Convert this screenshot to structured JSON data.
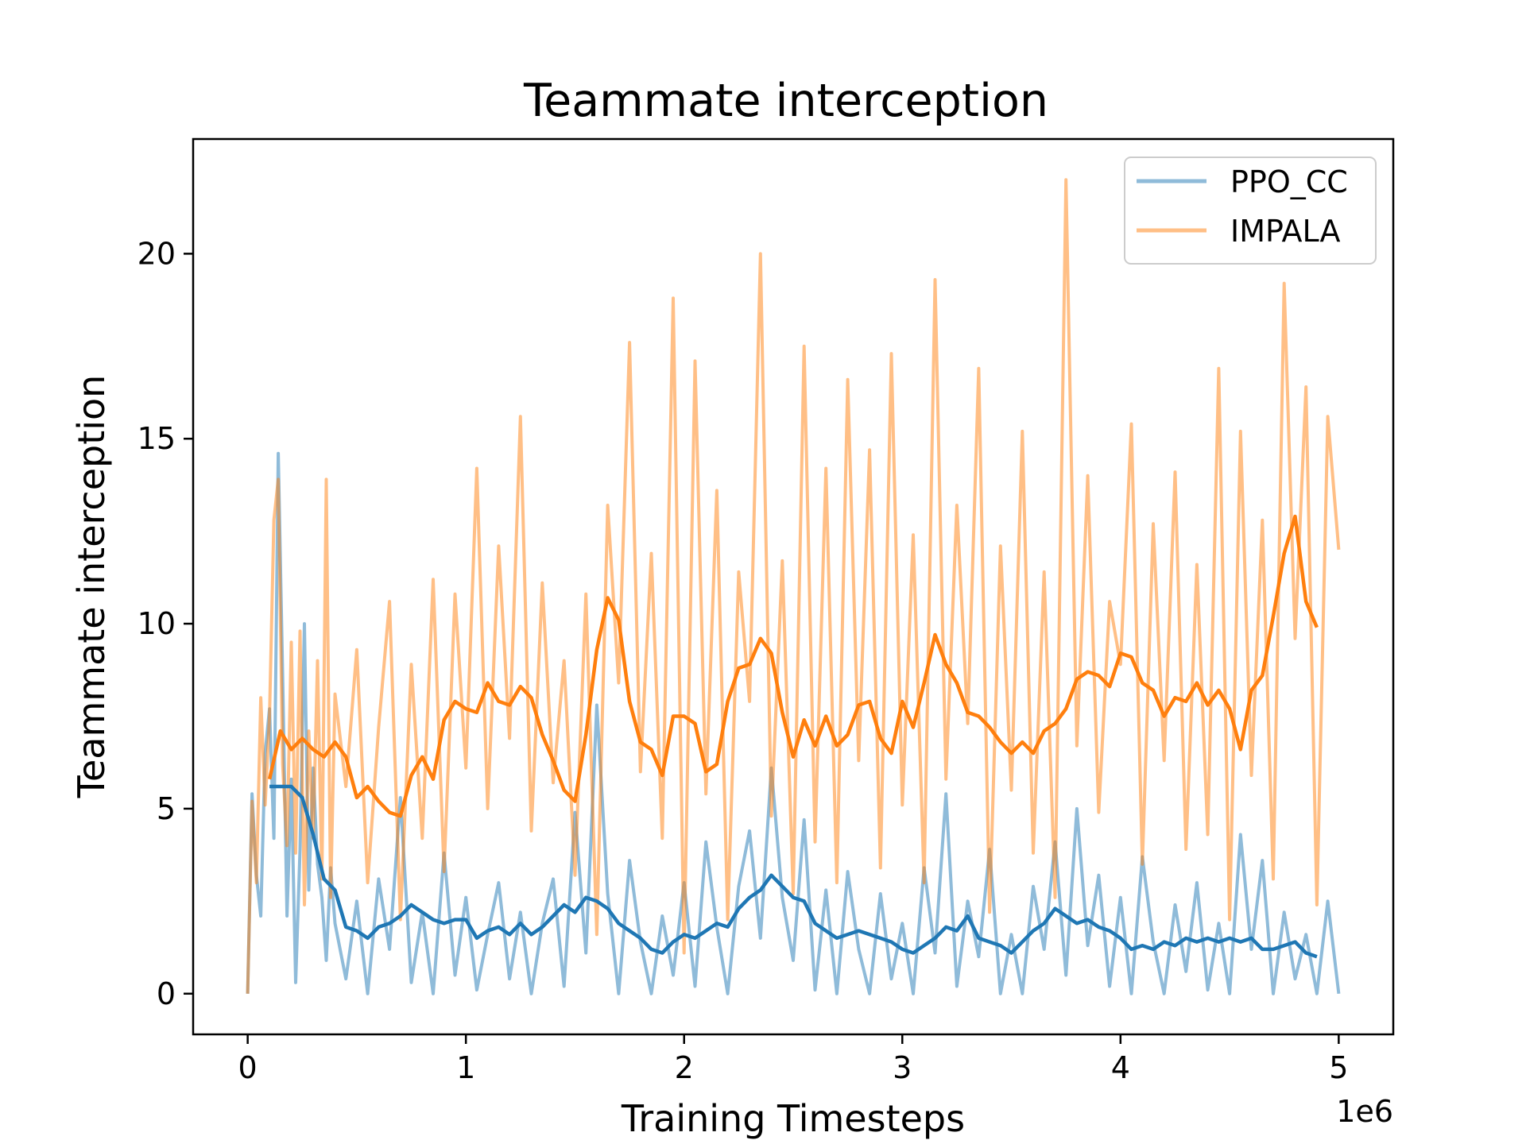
{
  "chart_data": {
    "type": "line",
    "title": "Teammate interception",
    "xlabel": "Training Timesteps",
    "ylabel": "Teammate interception",
    "x_offset_label": "1e6",
    "xlim": [
      -0.25,
      5.25
    ],
    "ylim": [
      -1.1,
      23.1
    ],
    "x_ticks": [
      0,
      1,
      2,
      3,
      4,
      5
    ],
    "y_ticks": [
      0,
      5,
      10,
      15,
      20
    ],
    "grid": false,
    "legend_position": "top-right",
    "series": [
      {
        "name": "PPO_CC",
        "color": "#1f77b4",
        "raw_alpha": 0.5,
        "x": [
          0.0,
          0.02,
          0.04,
          0.06,
          0.08,
          0.1,
          0.12,
          0.14,
          0.16,
          0.18,
          0.2,
          0.22,
          0.24,
          0.26,
          0.28,
          0.3,
          0.32,
          0.34,
          0.36,
          0.38,
          0.4,
          0.45,
          0.5,
          0.55,
          0.6,
          0.65,
          0.7,
          0.75,
          0.8,
          0.85,
          0.9,
          0.95,
          1.0,
          1.05,
          1.1,
          1.15,
          1.2,
          1.25,
          1.3,
          1.35,
          1.4,
          1.45,
          1.5,
          1.55,
          1.6,
          1.65,
          1.7,
          1.75,
          1.8,
          1.85,
          1.9,
          1.95,
          2.0,
          2.05,
          2.1,
          2.15,
          2.2,
          2.25,
          2.3,
          2.35,
          2.4,
          2.45,
          2.5,
          2.55,
          2.6,
          2.65,
          2.7,
          2.75,
          2.8,
          2.85,
          2.9,
          2.95,
          3.0,
          3.05,
          3.1,
          3.15,
          3.2,
          3.25,
          3.3,
          3.35,
          3.4,
          3.45,
          3.5,
          3.55,
          3.6,
          3.65,
          3.7,
          3.75,
          3.8,
          3.85,
          3.9,
          3.95,
          4.0,
          4.05,
          4.1,
          4.15,
          4.2,
          4.25,
          4.3,
          4.35,
          4.4,
          4.45,
          4.5,
          4.55,
          4.6,
          4.65,
          4.7,
          4.75,
          4.8,
          4.85,
          4.9,
          4.95,
          5.0
        ],
        "values": [
          0.0,
          5.4,
          3.2,
          2.1,
          6.5,
          7.7,
          4.2,
          14.6,
          8.6,
          2.1,
          5.8,
          0.3,
          3.9,
          10.0,
          2.8,
          6.1,
          3.5,
          2.6,
          0.9,
          3.4,
          1.9,
          0.4,
          2.5,
          0.0,
          3.1,
          1.2,
          5.3,
          0.3,
          2.2,
          0.0,
          3.8,
          0.5,
          2.6,
          0.1,
          1.6,
          3.0,
          0.4,
          2.2,
          0.0,
          1.9,
          3.1,
          0.2,
          4.9,
          1.1,
          7.8,
          2.7,
          0.0,
          3.6,
          1.4,
          0.0,
          2.1,
          0.5,
          3.0,
          0.2,
          4.1,
          1.8,
          0.0,
          2.9,
          4.4,
          1.5,
          6.1,
          2.6,
          0.9,
          4.7,
          0.1,
          2.8,
          0.0,
          3.3,
          1.2,
          0.0,
          2.7,
          0.4,
          1.9,
          0.0,
          3.4,
          1.1,
          5.4,
          0.2,
          2.5,
          1.0,
          3.9,
          0.0,
          1.6,
          0.0,
          2.9,
          1.2,
          4.1,
          0.5,
          5.0,
          1.3,
          3.2,
          0.2,
          2.6,
          0.0,
          3.7,
          1.4,
          0.0,
          2.4,
          0.6,
          3.0,
          0.1,
          1.9,
          0.0,
          4.3,
          1.2,
          3.6,
          0.0,
          2.2,
          0.4,
          1.6,
          0.0,
          2.5,
          0.0
        ]
      },
      {
        "name": "IMPALA",
        "color": "#ff7f0e",
        "raw_alpha": 0.5,
        "x": [
          0.0,
          0.02,
          0.04,
          0.06,
          0.08,
          0.1,
          0.12,
          0.14,
          0.16,
          0.18,
          0.2,
          0.22,
          0.24,
          0.26,
          0.28,
          0.3,
          0.32,
          0.34,
          0.36,
          0.38,
          0.4,
          0.45,
          0.5,
          0.55,
          0.6,
          0.65,
          0.7,
          0.75,
          0.8,
          0.85,
          0.9,
          0.95,
          1.0,
          1.05,
          1.1,
          1.15,
          1.2,
          1.25,
          1.3,
          1.35,
          1.4,
          1.45,
          1.5,
          1.55,
          1.6,
          1.65,
          1.7,
          1.75,
          1.8,
          1.85,
          1.9,
          1.95,
          2.0,
          2.05,
          2.1,
          2.15,
          2.2,
          2.25,
          2.3,
          2.35,
          2.4,
          2.45,
          2.5,
          2.55,
          2.6,
          2.65,
          2.7,
          2.75,
          2.8,
          2.85,
          2.9,
          2.95,
          3.0,
          3.05,
          3.1,
          3.15,
          3.2,
          3.25,
          3.3,
          3.35,
          3.4,
          3.45,
          3.5,
          3.55,
          3.6,
          3.65,
          3.7,
          3.75,
          3.8,
          3.85,
          3.9,
          3.95,
          4.0,
          4.05,
          4.1,
          4.15,
          4.2,
          4.25,
          4.3,
          4.35,
          4.4,
          4.45,
          4.5,
          4.55,
          4.6,
          4.65,
          4.7,
          4.75,
          4.8,
          4.85,
          4.9,
          4.95,
          5.0
        ],
        "values": [
          0.0,
          5.2,
          3.0,
          8.0,
          5.1,
          7.5,
          12.8,
          13.9,
          6.2,
          4.0,
          9.5,
          3.8,
          9.8,
          2.4,
          7.1,
          4.2,
          9.0,
          3.1,
          13.9,
          2.6,
          8.1,
          5.6,
          9.3,
          3.0,
          7.2,
          10.6,
          2.0,
          8.9,
          4.2,
          11.2,
          3.3,
          10.8,
          6.1,
          14.2,
          5.0,
          12.1,
          6.9,
          15.6,
          4.4,
          11.1,
          5.7,
          9.0,
          3.2,
          10.8,
          1.6,
          13.2,
          8.4,
          17.6,
          6.0,
          11.9,
          4.2,
          18.8,
          1.1,
          17.1,
          5.4,
          13.6,
          2.0,
          11.4,
          7.9,
          20.0,
          4.8,
          11.7,
          2.7,
          17.5,
          4.1,
          14.2,
          3.0,
          16.6,
          6.3,
          14.7,
          3.4,
          17.3,
          5.1,
          12.4,
          3.0,
          19.3,
          5.8,
          13.2,
          7.3,
          16.9,
          2.2,
          12.1,
          5.5,
          15.2,
          3.8,
          11.4,
          2.6,
          22.0,
          6.7,
          14.0,
          4.9,
          10.6,
          8.9,
          15.4,
          3.5,
          12.7,
          6.3,
          14.1,
          3.9,
          11.6,
          4.3,
          16.9,
          2.0,
          15.2,
          5.9,
          12.8,
          3.1,
          19.2,
          9.6,
          16.4,
          2.4,
          15.6,
          12.0
        ]
      }
    ],
    "smoothed_series": [
      {
        "name": "",
        "color": "#1f77b4",
        "x": [
          0.1,
          0.15,
          0.2,
          0.25,
          0.3,
          0.35,
          0.4,
          0.45,
          0.5,
          0.55,
          0.6,
          0.65,
          0.7,
          0.75,
          0.8,
          0.85,
          0.9,
          0.95,
          1.0,
          1.05,
          1.1,
          1.15,
          1.2,
          1.25,
          1.3,
          1.35,
          1.4,
          1.45,
          1.5,
          1.55,
          1.6,
          1.65,
          1.7,
          1.75,
          1.8,
          1.85,
          1.9,
          1.95,
          2.0,
          2.05,
          2.1,
          2.15,
          2.2,
          2.25,
          2.3,
          2.35,
          2.4,
          2.45,
          2.5,
          2.55,
          2.6,
          2.65,
          2.7,
          2.75,
          2.8,
          2.85,
          2.9,
          2.95,
          3.0,
          3.05,
          3.1,
          3.15,
          3.2,
          3.25,
          3.3,
          3.35,
          3.4,
          3.45,
          3.5,
          3.55,
          3.6,
          3.65,
          3.7,
          3.75,
          3.8,
          3.85,
          3.9,
          3.95,
          4.0,
          4.05,
          4.1,
          4.15,
          4.2,
          4.25,
          4.3,
          4.35,
          4.4,
          4.45,
          4.5,
          4.55,
          4.6,
          4.65,
          4.7,
          4.75,
          4.8,
          4.85,
          4.9
        ],
        "values": [
          5.6,
          5.6,
          5.6,
          5.3,
          4.3,
          3.1,
          2.8,
          1.8,
          1.7,
          1.5,
          1.8,
          1.9,
          2.1,
          2.4,
          2.2,
          2.0,
          1.9,
          2.0,
          2.0,
          1.5,
          1.7,
          1.8,
          1.6,
          1.9,
          1.6,
          1.8,
          2.1,
          2.4,
          2.2,
          2.6,
          2.5,
          2.3,
          1.9,
          1.7,
          1.5,
          1.2,
          1.1,
          1.4,
          1.6,
          1.5,
          1.7,
          1.9,
          1.8,
          2.3,
          2.6,
          2.8,
          3.2,
          2.9,
          2.6,
          2.5,
          1.9,
          1.7,
          1.5,
          1.6,
          1.7,
          1.6,
          1.5,
          1.4,
          1.2,
          1.1,
          1.3,
          1.5,
          1.8,
          1.7,
          2.1,
          1.5,
          1.4,
          1.3,
          1.1,
          1.4,
          1.7,
          1.9,
          2.3,
          2.1,
          1.9,
          2.0,
          1.8,
          1.7,
          1.5,
          1.2,
          1.3,
          1.2,
          1.4,
          1.3,
          1.5,
          1.4,
          1.5,
          1.4,
          1.5,
          1.4,
          1.5,
          1.2,
          1.2,
          1.3,
          1.4,
          1.1,
          1.0
        ]
      },
      {
        "name": "",
        "color": "#ff7f0e",
        "x": [
          0.1,
          0.15,
          0.2,
          0.25,
          0.3,
          0.35,
          0.4,
          0.45,
          0.5,
          0.55,
          0.6,
          0.65,
          0.7,
          0.75,
          0.8,
          0.85,
          0.9,
          0.95,
          1.0,
          1.05,
          1.1,
          1.15,
          1.2,
          1.25,
          1.3,
          1.35,
          1.4,
          1.45,
          1.5,
          1.55,
          1.6,
          1.65,
          1.7,
          1.75,
          1.8,
          1.85,
          1.9,
          1.95,
          2.0,
          2.05,
          2.1,
          2.15,
          2.2,
          2.25,
          2.3,
          2.35,
          2.4,
          2.45,
          2.5,
          2.55,
          2.6,
          2.65,
          2.7,
          2.75,
          2.8,
          2.85,
          2.9,
          2.95,
          3.0,
          3.05,
          3.1,
          3.15,
          3.2,
          3.25,
          3.3,
          3.35,
          3.4,
          3.45,
          3.5,
          3.55,
          3.6,
          3.65,
          3.7,
          3.75,
          3.8,
          3.85,
          3.9,
          3.95,
          4.0,
          4.05,
          4.1,
          4.15,
          4.2,
          4.25,
          4.3,
          4.35,
          4.4,
          4.45,
          4.5,
          4.55,
          4.6,
          4.65,
          4.7,
          4.75,
          4.8,
          4.85,
          4.9
        ],
        "values": [
          5.8,
          7.1,
          6.6,
          6.9,
          6.6,
          6.4,
          6.8,
          6.4,
          5.3,
          5.6,
          5.2,
          4.9,
          4.8,
          5.9,
          6.4,
          5.8,
          7.4,
          7.9,
          7.7,
          7.6,
          8.4,
          7.9,
          7.8,
          8.3,
          8.0,
          7.0,
          6.3,
          5.5,
          5.2,
          7.0,
          9.3,
          10.7,
          10.1,
          7.9,
          6.8,
          6.6,
          5.9,
          7.5,
          7.5,
          7.3,
          6.0,
          6.2,
          7.9,
          8.8,
          8.9,
          9.6,
          9.2,
          7.6,
          6.4,
          7.4,
          6.7,
          7.5,
          6.7,
          7.0,
          7.8,
          7.9,
          6.9,
          6.5,
          7.9,
          7.2,
          8.4,
          9.7,
          8.9,
          8.4,
          7.6,
          7.5,
          7.2,
          6.8,
          6.5,
          6.8,
          6.5,
          7.1,
          7.3,
          7.7,
          8.5,
          8.7,
          8.6,
          8.3,
          9.2,
          9.1,
          8.4,
          8.2,
          7.5,
          8.0,
          7.9,
          8.4,
          7.8,
          8.2,
          7.7,
          6.6,
          8.2,
          8.6,
          10.2,
          11.9,
          12.9,
          10.6,
          9.9
        ]
      }
    ]
  }
}
